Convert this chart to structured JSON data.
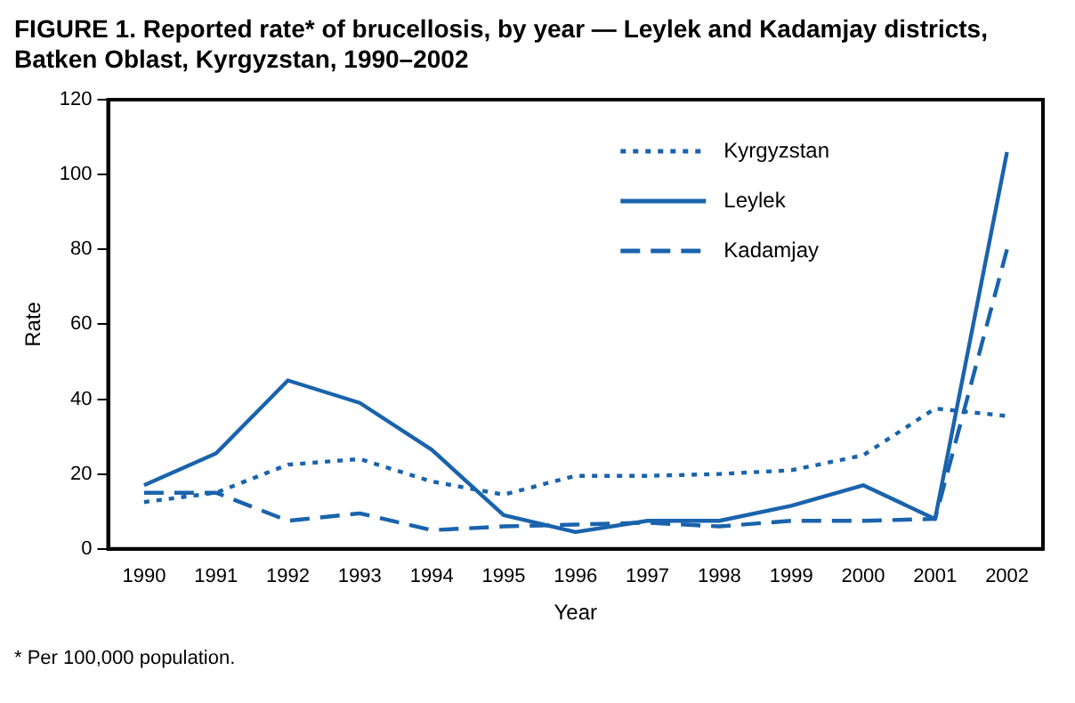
{
  "chart_data": {
    "type": "line",
    "title": "FIGURE 1. Reported rate* of brucellosis, by year — Leylek and Kadamjay districts, Batken Oblast, Kyrgyzstan, 1990–2002",
    "xlabel": "Year",
    "ylabel": "Rate",
    "categories": [
      "1990",
      "1991",
      "1992",
      "1993",
      "1994",
      "1995",
      "1996",
      "1997",
      "1998",
      "1999",
      "2000",
      "2001",
      "2002"
    ],
    "series": [
      {
        "name": "Kyrgyzstan",
        "color": "#1a63ad",
        "line_style": "dotted",
        "values": [
          12.5,
          15,
          22.5,
          24,
          18,
          14.5,
          19.5,
          19.5,
          20,
          21,
          25,
          37.5,
          35.5
        ]
      },
      {
        "name": "Leylek",
        "color": "#1a63ad",
        "line_style": "solid",
        "values": [
          17,
          25.5,
          45,
          39,
          26.5,
          9,
          4.5,
          7.5,
          7.5,
          11.5,
          17,
          8,
          106
        ]
      },
      {
        "name": "Kadamjay",
        "color": "#1a63ad",
        "line_style": "dashed",
        "values": [
          15,
          15,
          7.5,
          9.5,
          5,
          6,
          6.5,
          7,
          6,
          7.5,
          7.5,
          8,
          80
        ]
      }
    ],
    "ylim": [
      0,
      120
    ],
    "yticks": [
      0,
      20,
      40,
      60,
      80,
      100,
      120
    ],
    "grid": false,
    "legend": "top right",
    "marker": "none",
    "annotations": [
      "* Per 100,000 population."
    ]
  }
}
